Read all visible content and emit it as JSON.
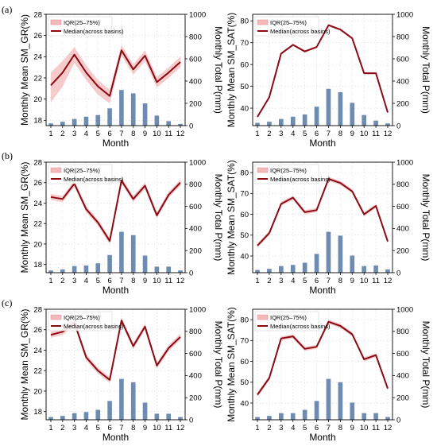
{
  "colors": {
    "median_line": "#8b0a14",
    "iqr_fill": "#f2b9bb",
    "bars": "#6e8cb1",
    "grid": "#e1e1e1"
  },
  "panels": [
    {
      "label": "(a)"
    },
    {
      "label": "(b)"
    },
    {
      "label": "(c)"
    }
  ],
  "chart_data": [
    {
      "panel": "(a)",
      "type": "line+bar",
      "xlabel": "Month",
      "ylabel": "Monthly Mean SM_GR(%)",
      "y2label": "Monthly Total P(mm)",
      "x": [
        1,
        2,
        3,
        4,
        5,
        6,
        7,
        8,
        9,
        10,
        11,
        12
      ],
      "ylim": [
        17.5,
        28
      ],
      "yticks": [
        18,
        20,
        22,
        24,
        26,
        28
      ],
      "y2lim": [
        0,
        1000
      ],
      "y2ticks": [
        0,
        200,
        400,
        600,
        800,
        1000
      ],
      "legend": [
        "IQR(25–75%)",
        "Median(across basins)"
      ],
      "legend_position": "top-left",
      "series": [
        {
          "name": "Median(across basins)",
          "type": "line",
          "values": [
            21.3,
            22.5,
            24.2,
            22.5,
            21.2,
            20.3,
            24.6,
            22.8,
            24.1,
            21.6,
            22.5,
            23.5
          ]
        },
        {
          "name": "IQR(25–75%)",
          "type": "band",
          "lower": [
            19.7,
            21.2,
            23.4,
            21.8,
            20.4,
            19.6,
            24.1,
            22.3,
            23.6,
            21.1,
            22.0,
            23.0
          ],
          "upper": [
            22.5,
            23.6,
            24.9,
            23.2,
            21.8,
            20.9,
            25.1,
            23.3,
            24.6,
            22.1,
            23.0,
            24.0
          ]
        },
        {
          "name": "Monthly Total P(mm)",
          "type": "bar",
          "axis": "y2",
          "values": [
            20,
            35,
            60,
            80,
            95,
            155,
            320,
            290,
            200,
            90,
            40,
            15
          ]
        }
      ]
    },
    {
      "panel": "(a)",
      "type": "line+bar",
      "xlabel": "Month",
      "ylabel": "Monthly Mean SM_SAT(%)",
      "y2label": "Monthly Total P(mm)",
      "x": [
        1,
        2,
        3,
        4,
        5,
        6,
        7,
        8,
        9,
        10,
        11,
        12
      ],
      "ylim": [
        32,
        83
      ],
      "yticks": [
        40,
        50,
        60,
        70,
        80
      ],
      "y2lim": [
        0,
        1000
      ],
      "y2ticks": [
        0,
        200,
        400,
        600,
        800,
        1000
      ],
      "legend": [
        "IQR(25–75%)",
        "Median(across basins)"
      ],
      "legend_position": "top-left",
      "series": [
        {
          "name": "Median(across basins)",
          "type": "line",
          "values": [
            36,
            45,
            65,
            69,
            66,
            68,
            78,
            76,
            72,
            56,
            56,
            38
          ]
        },
        {
          "name": "IQR(25–75%)",
          "type": "band",
          "lower": [
            35.5,
            44.5,
            64.5,
            68.5,
            65.5,
            67.5,
            77.5,
            75.5,
            71.5,
            55.5,
            55.5,
            37.5
          ],
          "upper": [
            36.5,
            45.5,
            65.5,
            69.5,
            66.5,
            68.5,
            78.5,
            76.5,
            72.5,
            56.5,
            56.5,
            38.5
          ]
        },
        {
          "name": "Monthly Total P(mm)",
          "type": "bar",
          "axis": "y2",
          "values": [
            25,
            35,
            60,
            80,
            100,
            170,
            330,
            300,
            205,
            95,
            45,
            20
          ]
        }
      ]
    },
    {
      "panel": "(b)",
      "type": "line+bar",
      "xlabel": "Month",
      "ylabel": "Monthly Mean SM_GR(%)",
      "y2label": "Monthly Total P(mm)",
      "x": [
        1,
        2,
        3,
        4,
        5,
        6,
        7,
        8,
        9,
        10,
        11,
        12
      ],
      "ylim": [
        17.2,
        28
      ],
      "yticks": [
        18,
        20,
        22,
        24,
        26,
        28
      ],
      "y2lim": [
        0,
        1000
      ],
      "y2ticks": [
        0,
        200,
        400,
        600,
        800,
        1000
      ],
      "legend": [
        "IQR(25–75%)",
        "Median(across basins)"
      ],
      "legend_position": "top-left",
      "series": [
        {
          "name": "Median(across basins)",
          "type": "line",
          "values": [
            24.6,
            24.4,
            25.9,
            23.4,
            22.1,
            20.3,
            26.2,
            24.4,
            25.7,
            22.8,
            24.8,
            26.0
          ]
        },
        {
          "name": "IQR(25–75%)",
          "type": "band",
          "lower": [
            24.3,
            24.1,
            25.6,
            23.1,
            21.8,
            20.0,
            25.9,
            24.1,
            25.4,
            22.5,
            24.5,
            25.7
          ],
          "upper": [
            24.9,
            24.7,
            26.2,
            23.7,
            22.4,
            20.6,
            26.5,
            24.7,
            26.0,
            23.1,
            25.1,
            26.3
          ]
        },
        {
          "name": "Monthly Total P(mm)",
          "type": "bar",
          "axis": "y2",
          "values": [
            20,
            30,
            60,
            65,
            85,
            160,
            370,
            340,
            155,
            55,
            55,
            20
          ]
        }
      ]
    },
    {
      "panel": "(b)",
      "type": "line+bar",
      "xlabel": "Month",
      "ylabel": "Monthly Mean SM_SAT(%)",
      "y2label": "Monthly Total P(mm)",
      "x": [
        1,
        2,
        3,
        4,
        5,
        6,
        7,
        8,
        9,
        10,
        11,
        12
      ],
      "ylim": [
        32,
        85
      ],
      "yticks": [
        40,
        50,
        60,
        70,
        80
      ],
      "y2lim": [
        0,
        1000
      ],
      "y2ticks": [
        0,
        200,
        400,
        600,
        800,
        1000
      ],
      "legend": [
        "IQR(25–75%)",
        "Median(across basins)"
      ],
      "legend_position": "top-left",
      "series": [
        {
          "name": "Median(across basins)",
          "type": "line",
          "values": [
            45,
            51,
            65,
            68,
            61,
            62,
            77,
            75,
            71,
            60,
            64,
            47
          ]
        },
        {
          "name": "IQR(25–75%)",
          "type": "band",
          "lower": [
            44,
            50,
            64,
            67,
            60,
            61,
            76,
            74,
            70,
            59,
            63,
            46
          ],
          "upper": [
            46,
            52,
            66,
            69,
            62,
            63,
            78,
            76,
            72,
            61,
            65,
            48
          ]
        },
        {
          "name": "Monthly Total P(mm)",
          "type": "bar",
          "axis": "y2",
          "values": [
            25,
            35,
            60,
            70,
            90,
            170,
            370,
            335,
            155,
            60,
            65,
            30
          ]
        }
      ]
    },
    {
      "panel": "(c)",
      "type": "line+bar",
      "xlabel": "Month",
      "ylabel": "Monthly Mean SM_GR(%)",
      "y2label": "Monthly Total P(mm)",
      "x": [
        1,
        2,
        3,
        4,
        5,
        6,
        7,
        8,
        9,
        10,
        11,
        12
      ],
      "ylim": [
        17.2,
        28
      ],
      "yticks": [
        18,
        20,
        22,
        24,
        26,
        28
      ],
      "y2lim": [
        0,
        1000
      ],
      "y2ticks": [
        0,
        200,
        400,
        600,
        800,
        1000
      ],
      "legend": [
        "IQR(25–75%)",
        "Median(across basins)"
      ],
      "legend_position": "top-left",
      "series": [
        {
          "name": "Median(across basins)",
          "type": "line",
          "values": [
            25.5,
            25.8,
            26.7,
            23.3,
            22.0,
            21.1,
            26.9,
            24.4,
            26.3,
            22.5,
            24.2,
            25.3
          ]
        },
        {
          "name": "IQR(25–75%)",
          "type": "band",
          "lower": [
            25.2,
            25.5,
            26.4,
            23.0,
            21.7,
            20.8,
            26.6,
            24.1,
            26.0,
            22.2,
            23.9,
            25.0
          ],
          "upper": [
            25.8,
            26.1,
            27.0,
            23.6,
            22.3,
            21.4,
            27.2,
            24.7,
            26.6,
            22.8,
            24.5,
            25.6
          ]
        },
        {
          "name": "Monthly Total P(mm)",
          "type": "bar",
          "axis": "y2",
          "values": [
            25,
            35,
            60,
            70,
            90,
            170,
            370,
            340,
            155,
            55,
            55,
            25
          ]
        }
      ]
    },
    {
      "panel": "(c)",
      "type": "line+bar",
      "xlabel": "Month",
      "ylabel": "Monthly Mean SM_SAT(%)",
      "y2label": "Monthly Total P(mm)",
      "x": [
        1,
        2,
        3,
        4,
        5,
        6,
        7,
        8,
        9,
        10,
        11,
        12
      ],
      "ylim": [
        32,
        85
      ],
      "yticks": [
        40,
        50,
        60,
        70,
        80
      ],
      "y2lim": [
        0,
        1000
      ],
      "y2ticks": [
        0,
        200,
        400,
        600,
        800,
        1000
      ],
      "legend": [
        "IQR(25–75%)",
        "Median(across basins)"
      ],
      "legend_position": "top-left",
      "series": [
        {
          "name": "Median(across basins)",
          "type": "line",
          "values": [
            44,
            52,
            71,
            72,
            66,
            67,
            79,
            77,
            73,
            61,
            63,
            47
          ]
        },
        {
          "name": "IQR(25–75%)",
          "type": "band",
          "lower": [
            43,
            51,
            70,
            71,
            65,
            66,
            78,
            76,
            72,
            60,
            62,
            46
          ],
          "upper": [
            45,
            53,
            72,
            73,
            67,
            68,
            80,
            78,
            74,
            62,
            64,
            48
          ]
        },
        {
          "name": "Monthly Total P(mm)",
          "type": "bar",
          "axis": "y2",
          "values": [
            25,
            35,
            60,
            60,
            90,
            170,
            370,
            340,
            155,
            60,
            60,
            25
          ]
        }
      ]
    }
  ]
}
